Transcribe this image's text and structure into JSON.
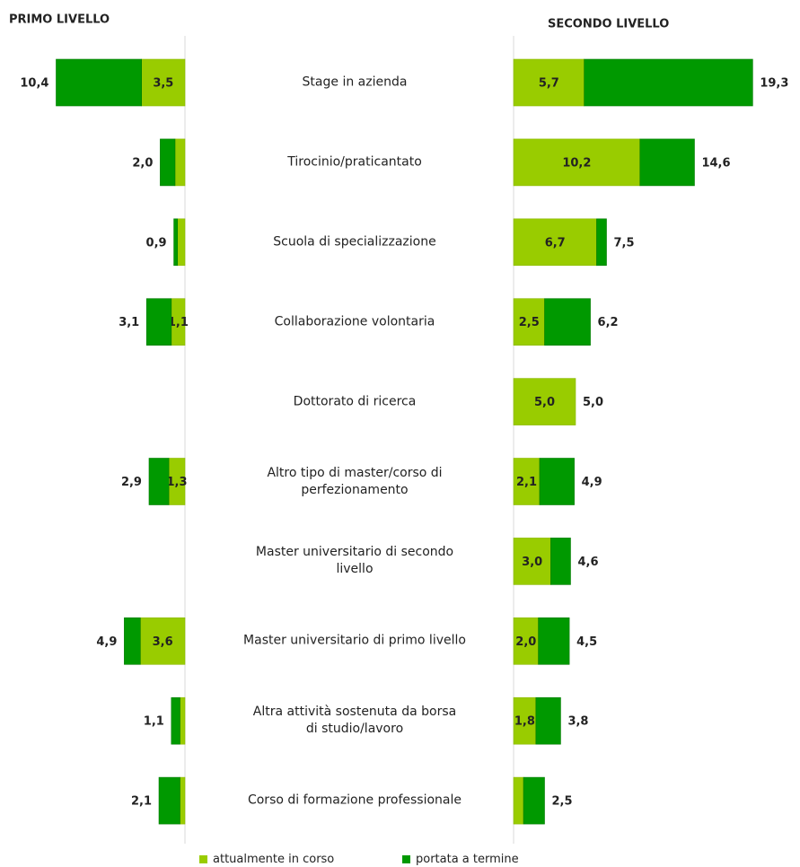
{
  "chart_data": [
    {
      "type": "bar",
      "title": "PRIMO LIVELLO",
      "direction": "left",
      "xlim": [
        0,
        20
      ],
      "categories": [
        "Stage in azienda",
        "Tirocinio/praticantato",
        "Scuola di specializzazione",
        "Collaborazione  volontaria",
        "Dottorato di ricerca",
        "Altro tipo di master/corso di\nperfezionamento",
        "Master universitario di secondo\nlivello",
        "Master universitario di primo livello",
        "Altra attività sostenuta da borsa\ndi studio/lavoro",
        "Corso di formazione professionale"
      ],
      "series": [
        {
          "name": "attualmente in corso",
          "color": "#99cc00",
          "values": [
            3.5,
            0.8,
            0.6,
            1.1,
            null,
            1.3,
            null,
            3.6,
            0.4,
            0.4
          ],
          "value_labels": [
            "3,5",
            null,
            null,
            "1,1",
            null,
            "1,3",
            null,
            "3,6",
            null,
            null
          ]
        },
        {
          "name": "portata a termine",
          "color": "#009900",
          "values": [
            6.9,
            1.2,
            0.3,
            2.0,
            null,
            1.6,
            null,
            1.3,
            0.7,
            1.7
          ]
        }
      ],
      "totals": {
        "values": [
          10.4,
          2.0,
          0.9,
          3.1,
          null,
          2.9,
          null,
          4.9,
          1.1,
          2.1
        ],
        "value_labels": [
          "10,4",
          "2,0",
          "0,9",
          "3,1",
          null,
          "2,9",
          null,
          "4,9",
          "1,1",
          "2,1"
        ]
      }
    },
    {
      "type": "bar",
      "title": "SECONDO LIVELLO",
      "direction": "right",
      "xlim": [
        0,
        20
      ],
      "series": [
        {
          "name": "attualmente in corso",
          "color": "#99cc00",
          "values": [
            5.7,
            10.2,
            6.7,
            2.5,
            5.0,
            2.1,
            3.0,
            2.0,
            1.8,
            0.8
          ],
          "value_labels": [
            "5,7",
            "10,2",
            "6,7",
            "2,5",
            "5,0",
            "2,1",
            "3,0",
            "2,0",
            "1,8",
            null
          ]
        },
        {
          "name": "portata a termine",
          "color": "#009900",
          "values": [
            13.6,
            4.4,
            0.8,
            3.7,
            0.0,
            2.8,
            1.6,
            2.5,
            2.0,
            1.7
          ]
        }
      ],
      "totals": {
        "values": [
          19.3,
          14.6,
          7.5,
          6.2,
          5.0,
          4.9,
          4.6,
          4.5,
          3.8,
          2.5
        ],
        "value_labels": [
          "19,3",
          "14,6",
          "7,5",
          "6,2",
          "5,0",
          "4,9",
          "4,6",
          "4,5",
          "3,8",
          "2,5"
        ]
      }
    }
  ]
}
